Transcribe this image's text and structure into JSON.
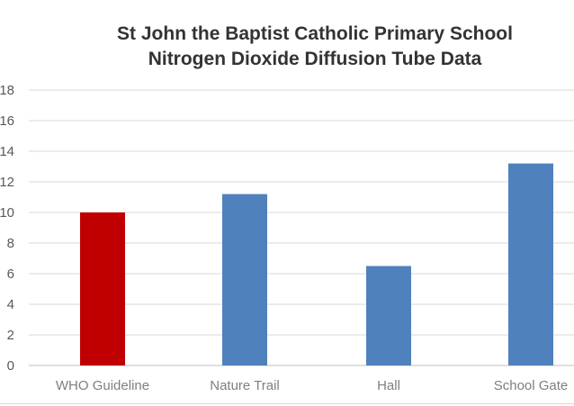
{
  "chart_data": {
    "type": "bar",
    "title_lines": [
      "St John the Baptist Catholic Primary School",
      "Nitrogen Dioxide Diffusion Tube Data"
    ],
    "categories": [
      "WHO Guideline",
      "Nature Trail",
      "Hall",
      "School Gate"
    ],
    "values": [
      10,
      11.2,
      6.5,
      13.2
    ],
    "colors": [
      "#c00000",
      "#4f81bd",
      "#4f81bd",
      "#4f81bd"
    ],
    "ylim": [
      0,
      18
    ],
    "yticks": [
      "0",
      "2",
      "4",
      "6",
      "8",
      "10",
      "12",
      "14",
      "16",
      "18"
    ],
    "grid": true,
    "legend": "none",
    "xlabel": "",
    "ylabel": ""
  }
}
